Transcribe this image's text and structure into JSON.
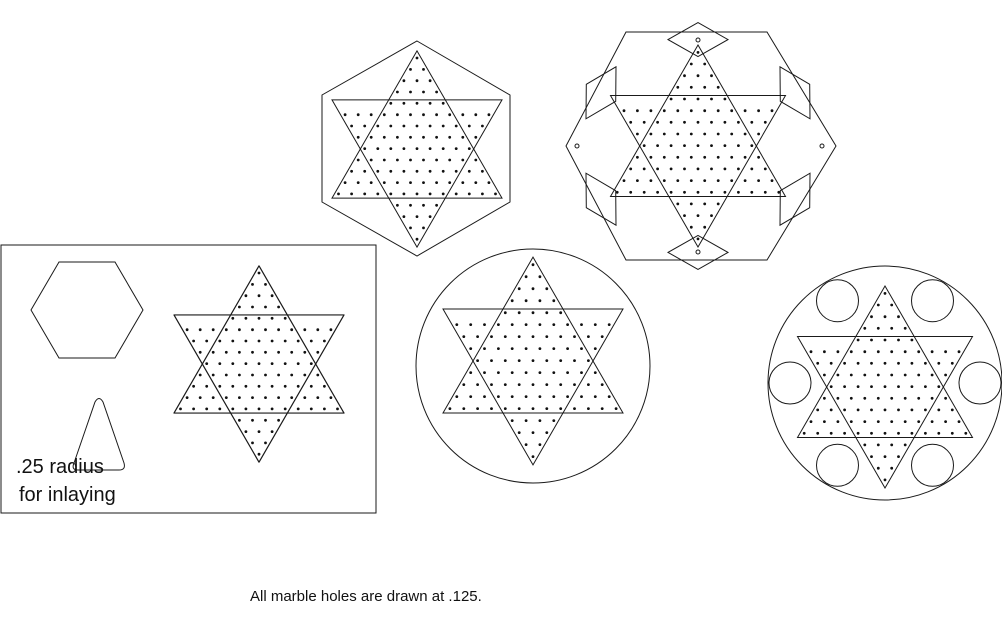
{
  "labels": {
    "inlay_line1": ".25 radius",
    "inlay_line2": "for inlaying",
    "footer_note": "All marble holes are drawn at .125."
  },
  "colors": {
    "stroke": "#1a1a1a",
    "hole": "#111111",
    "background": "#ffffff"
  },
  "boards": [
    {
      "name": "hexagon-board",
      "outline": "hexagon"
    },
    {
      "name": "hexagon-board-with-diamond-cutouts",
      "outline": "hexagon",
      "cutouts": "diamond"
    },
    {
      "name": "inlay-template-panel",
      "outline": "rectangle",
      "inlay_shapes": [
        "hexagon",
        "triangle"
      ]
    },
    {
      "name": "round-board",
      "outline": "circle"
    },
    {
      "name": "round-board-with-circle-cutouts",
      "outline": "circle",
      "cutouts": "circle"
    }
  ]
}
